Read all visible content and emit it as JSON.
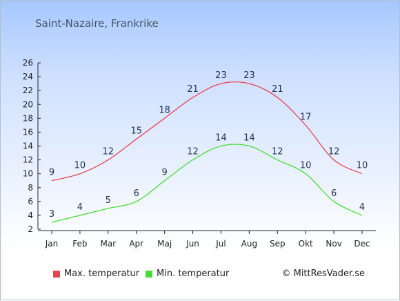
{
  "title": "Saint-Nazaire, Frankrike",
  "credit": "© MittResVader.se",
  "chart_data": {
    "type": "line",
    "categories": [
      "Jan",
      "Feb",
      "Mar",
      "Apr",
      "Maj",
      "Jun",
      "Jul",
      "Aug",
      "Sep",
      "Okt",
      "Nov",
      "Dec"
    ],
    "yticks": [
      2,
      4,
      6,
      8,
      10,
      12,
      14,
      16,
      18,
      20,
      22,
      24,
      26
    ],
    "ylim": [
      2,
      26
    ],
    "grid": false,
    "legend_position": "bottom",
    "series": [
      {
        "name": "Max. temperatur",
        "color": "#e64550",
        "values": [
          9,
          10,
          12,
          15,
          18,
          21,
          23,
          23,
          21,
          17,
          12,
          10
        ]
      },
      {
        "name": "Min. temperatur",
        "color": "#44dd33",
        "values": [
          3,
          4,
          5,
          6,
          9,
          12,
          14,
          14,
          12,
          10,
          6,
          4
        ]
      }
    ]
  }
}
